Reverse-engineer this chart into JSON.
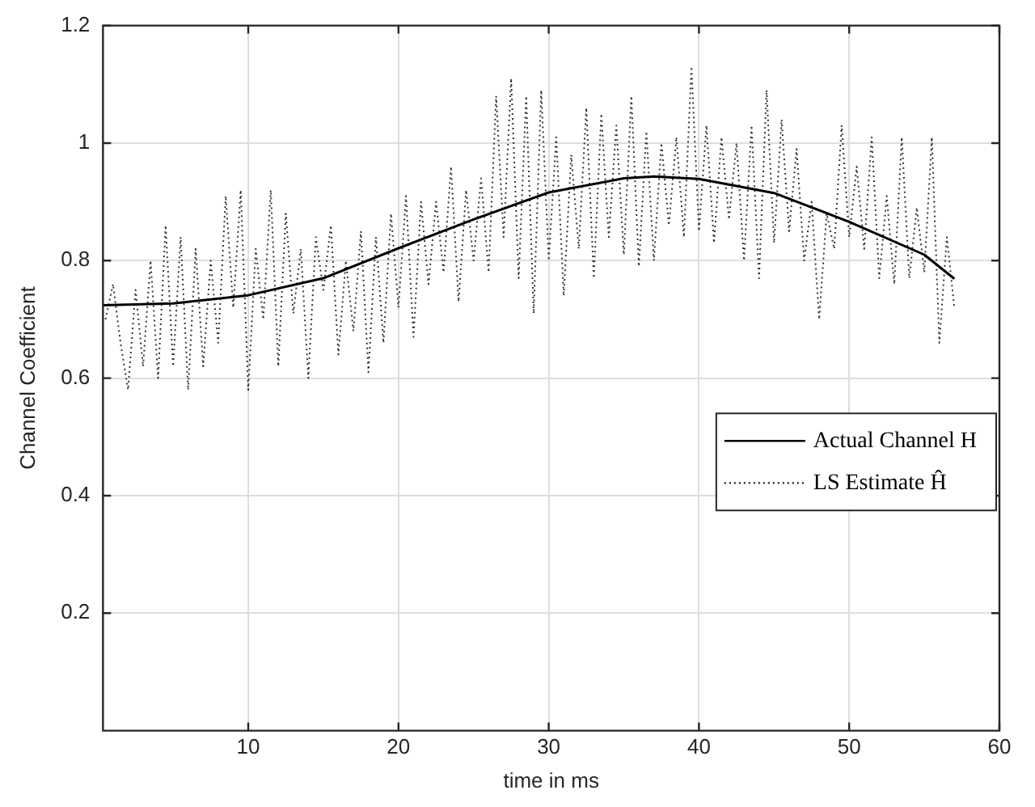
{
  "chart_data": {
    "type": "line",
    "xlabel": "time in ms",
    "ylabel": "Channel Coefficient",
    "xlim": [
      0.33,
      60
    ],
    "xticks": [
      10,
      20,
      30,
      40,
      50,
      60
    ],
    "ylim": [
      0,
      1.2
    ],
    "yticks": [
      0.2,
      0.4,
      0.6,
      0.8,
      1,
      1.2
    ],
    "grid": true,
    "legend": "right",
    "marker": "none",
    "series": [
      {
        "name": "Actual Channel H",
        "color": "#000000",
        "line_style": "solid",
        "x": [
          0.33,
          5,
          10,
          15,
          20,
          25,
          30,
          35,
          37,
          40,
          45,
          50,
          55,
          57
        ],
        "values": [
          0.724,
          0.727,
          0.741,
          0.77,
          0.821,
          0.87,
          0.916,
          0.94,
          0.943,
          0.939,
          0.915,
          0.866,
          0.81,
          0.769
        ]
      },
      {
        "name": "LS Estimate Ĥ",
        "color": "#333333",
        "line_style": "dotted",
        "x": [
          0.5,
          1,
          1.5,
          2,
          2.5,
          3,
          3.5,
          4,
          4.5,
          5,
          5.5,
          6,
          6.5,
          7,
          7.5,
          8,
          8.5,
          9,
          9.5,
          10,
          10.5,
          11,
          11.5,
          12,
          12.5,
          13,
          13.5,
          14,
          14.5,
          15,
          15.5,
          16,
          16.5,
          17,
          17.5,
          18,
          18.5,
          19,
          19.5,
          20,
          20.5,
          21,
          21.5,
          22,
          22.5,
          23,
          23.5,
          24,
          24.5,
          25,
          25.5,
          26,
          26.5,
          27,
          27.5,
          28,
          28.5,
          29,
          29.5,
          30,
          30.5,
          31,
          31.5,
          32,
          32.5,
          33,
          33.5,
          34,
          34.5,
          35,
          35.5,
          36,
          36.5,
          37,
          37.5,
          38,
          38.5,
          39,
          39.5,
          40,
          40.5,
          41,
          41.5,
          42,
          42.5,
          43,
          43.5,
          44,
          44.5,
          45,
          45.5,
          46,
          46.5,
          47,
          47.5,
          48,
          48.5,
          49,
          49.5,
          50,
          50.5,
          51,
          51.5,
          52,
          52.5,
          53,
          53.5,
          54,
          54.5,
          55,
          55.5,
          56,
          56.5,
          57
        ],
        "values": [
          0.7,
          0.76,
          0.66,
          0.58,
          0.75,
          0.62,
          0.8,
          0.6,
          0.86,
          0.62,
          0.84,
          0.58,
          0.82,
          0.62,
          0.8,
          0.66,
          0.91,
          0.72,
          0.92,
          0.58,
          0.82,
          0.7,
          0.92,
          0.62,
          0.88,
          0.71,
          0.82,
          0.6,
          0.84,
          0.75,
          0.86,
          0.64,
          0.8,
          0.68,
          0.85,
          0.61,
          0.84,
          0.66,
          0.88,
          0.72,
          0.91,
          0.67,
          0.9,
          0.76,
          0.9,
          0.78,
          0.96,
          0.73,
          0.92,
          0.8,
          0.94,
          0.78,
          1.08,
          0.84,
          1.11,
          0.77,
          1.08,
          0.71,
          1.09,
          0.8,
          1.01,
          0.74,
          0.98,
          0.82,
          1.06,
          0.77,
          1.05,
          0.84,
          1.03,
          0.81,
          1.08,
          0.79,
          1.02,
          0.8,
          1.0,
          0.86,
          1.01,
          0.84,
          1.13,
          0.85,
          1.03,
          0.83,
          1.01,
          0.87,
          1.0,
          0.8,
          1.03,
          0.77,
          1.09,
          0.83,
          1.04,
          0.85,
          0.99,
          0.8,
          0.9,
          0.7,
          0.88,
          0.82,
          1.03,
          0.84,
          0.96,
          0.82,
          1.01,
          0.77,
          0.91,
          0.76,
          1.01,
          0.77,
          0.89,
          0.78,
          1.01,
          0.66,
          0.84,
          0.72
        ]
      }
    ]
  }
}
